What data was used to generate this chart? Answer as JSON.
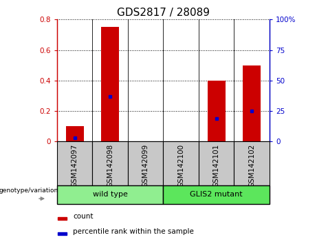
{
  "title": "GDS2817 / 28089",
  "samples": [
    "GSM142097",
    "GSM142098",
    "GSM142099",
    "GSM142100",
    "GSM142101",
    "GSM142102"
  ],
  "counts": [
    0.1,
    0.75,
    0.0,
    0.0,
    0.4,
    0.5
  ],
  "percentile_ranks_pct": [
    3,
    37,
    0,
    0,
    19,
    25
  ],
  "ylim_left": [
    0,
    0.8
  ],
  "ylim_right": [
    0,
    100
  ],
  "yticks_left": [
    0,
    0.2,
    0.4,
    0.6,
    0.8
  ],
  "yticks_right": [
    0,
    25,
    50,
    75,
    100
  ],
  "left_tick_labels": [
    "0",
    "0.2",
    "0.4",
    "0.6",
    "0.8"
  ],
  "right_tick_labels": [
    "0",
    "25",
    "50",
    "75",
    "100%"
  ],
  "bar_color": "#cc0000",
  "dot_color": "#0000cc",
  "group_bg_color": "#c8c8c8",
  "wt_color": "#90EE90",
  "gm_color": "#5ce65c",
  "genotype_label": "genotype/variation",
  "legend_count_label": "count",
  "legend_pct_label": "percentile rank within the sample",
  "title_fontsize": 11,
  "tick_fontsize": 7.5,
  "bar_width": 0.5,
  "grid_linestyle": ":"
}
